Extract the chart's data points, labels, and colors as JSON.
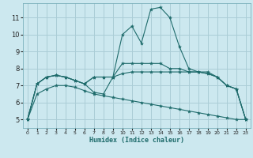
{
  "title": "",
  "xlabel": "Humidex (Indice chaleur)",
  "bg_color": "#cce8ef",
  "grid_color": "#aacdd6",
  "line_color": "#1e6b6b",
  "xlim": [
    -0.5,
    23.5
  ],
  "ylim": [
    4.5,
    11.85
  ],
  "yticks": [
    5,
    6,
    7,
    8,
    9,
    10,
    11
  ],
  "xticks": [
    0,
    1,
    2,
    3,
    4,
    5,
    6,
    7,
    8,
    9,
    10,
    11,
    12,
    13,
    14,
    15,
    16,
    17,
    18,
    19,
    20,
    21,
    22,
    23
  ],
  "series": [
    {
      "x": [
        0,
        1,
        2,
        3,
        4,
        5,
        6,
        7,
        8,
        9,
        10,
        11,
        12,
        13,
        14,
        15,
        16,
        17,
        18,
        19,
        20,
        21,
        22,
        23
      ],
      "y": [
        5.0,
        7.1,
        7.5,
        7.6,
        7.5,
        7.3,
        7.1,
        6.6,
        6.5,
        7.5,
        10.0,
        10.5,
        9.5,
        11.5,
        11.6,
        11.0,
        9.3,
        8.0,
        7.8,
        7.8,
        7.5,
        7.0,
        6.8,
        5.0
      ]
    },
    {
      "x": [
        0,
        1,
        2,
        3,
        4,
        5,
        6,
        7,
        8,
        9,
        10,
        11,
        12,
        13,
        14,
        15,
        16,
        17,
        18,
        19,
        20,
        21,
        22,
        23
      ],
      "y": [
        5.0,
        7.1,
        7.5,
        7.6,
        7.5,
        7.3,
        7.1,
        7.5,
        7.5,
        7.5,
        8.3,
        8.3,
        8.3,
        8.3,
        8.3,
        8.0,
        8.0,
        7.8,
        7.8,
        7.7,
        7.5,
        7.0,
        6.8,
        5.0
      ]
    },
    {
      "x": [
        0,
        1,
        2,
        3,
        4,
        5,
        6,
        7,
        8,
        9,
        10,
        11,
        12,
        13,
        14,
        15,
        16,
        17,
        18,
        19,
        20,
        21,
        22,
        23
      ],
      "y": [
        5.0,
        7.1,
        7.5,
        7.6,
        7.5,
        7.3,
        7.1,
        7.5,
        7.5,
        7.5,
        7.7,
        7.8,
        7.8,
        7.8,
        7.8,
        7.8,
        7.8,
        7.8,
        7.8,
        7.7,
        7.5,
        7.0,
        6.8,
        5.0
      ]
    },
    {
      "x": [
        0,
        1,
        2,
        3,
        4,
        5,
        6,
        7,
        8,
        9,
        10,
        11,
        12,
        13,
        14,
        15,
        16,
        17,
        18,
        19,
        20,
        21,
        22,
        23
      ],
      "y": [
        5.0,
        6.5,
        6.8,
        7.0,
        7.0,
        6.9,
        6.7,
        6.5,
        6.4,
        6.3,
        6.2,
        6.1,
        6.0,
        5.9,
        5.8,
        5.7,
        5.6,
        5.5,
        5.4,
        5.3,
        5.2,
        5.1,
        5.0,
        5.0
      ]
    }
  ]
}
